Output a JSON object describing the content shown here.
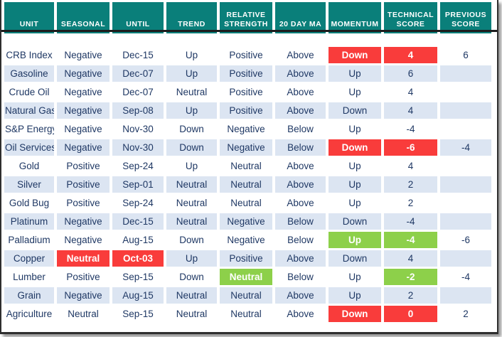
{
  "colors": {
    "header_bg": "#0a7f7a",
    "header_text": "#ffffff",
    "stripe_bg": "#dce5f2",
    "cell_text": "#1f3864",
    "highlight_red": "#f93c3b",
    "highlight_green": "#8dd04a",
    "frame_border": "#2e2e2e"
  },
  "chart_data": {
    "type": "table",
    "columns": [
      "UNIT",
      "SEASONAL",
      "UNTIL",
      "TREND",
      "RELATIVE STRENGTH",
      "20 DAY MA",
      "MOMENTUM",
      "TECHNICAL SCORE",
      "PREVIOUS SCORE"
    ],
    "rows": [
      [
        {
          "t": "CRB Index"
        },
        {
          "t": "Negative"
        },
        {
          "t": "Dec-15"
        },
        {
          "t": "Up"
        },
        {
          "t": "Positive"
        },
        {
          "t": "Above"
        },
        {
          "t": "Down",
          "hl": "red"
        },
        {
          "t": "4",
          "hl": "red"
        },
        {
          "t": "6"
        }
      ],
      [
        {
          "t": "Gasoline"
        },
        {
          "t": "Negative"
        },
        {
          "t": "Dec-07"
        },
        {
          "t": "Up"
        },
        {
          "t": "Positive"
        },
        {
          "t": "Above"
        },
        {
          "t": "Up"
        },
        {
          "t": "6"
        },
        {
          "t": ""
        }
      ],
      [
        {
          "t": "Crude Oil"
        },
        {
          "t": "Negative"
        },
        {
          "t": "Dec-07"
        },
        {
          "t": "Neutral"
        },
        {
          "t": "Positive"
        },
        {
          "t": "Above"
        },
        {
          "t": "Up"
        },
        {
          "t": "4"
        },
        {
          "t": ""
        }
      ],
      [
        {
          "t": "Natural Gas"
        },
        {
          "t": "Negative"
        },
        {
          "t": "Sep-08"
        },
        {
          "t": "Up"
        },
        {
          "t": "Positive"
        },
        {
          "t": "Above"
        },
        {
          "t": "Down"
        },
        {
          "t": "4"
        },
        {
          "t": ""
        }
      ],
      [
        {
          "t": "S&P Energy"
        },
        {
          "t": "Negative"
        },
        {
          "t": "Nov-30"
        },
        {
          "t": "Down"
        },
        {
          "t": "Negative"
        },
        {
          "t": "Below"
        },
        {
          "t": "Up"
        },
        {
          "t": "-4"
        },
        {
          "t": ""
        }
      ],
      [
        {
          "t": "Oil Services"
        },
        {
          "t": "Negative"
        },
        {
          "t": "Nov-30"
        },
        {
          "t": "Down"
        },
        {
          "t": "Negative"
        },
        {
          "t": "Below"
        },
        {
          "t": "Down",
          "hl": "red"
        },
        {
          "t": "-6",
          "hl": "red"
        },
        {
          "t": "-4"
        }
      ],
      [
        {
          "t": "Gold"
        },
        {
          "t": "Positive"
        },
        {
          "t": "Sep-24"
        },
        {
          "t": "Up"
        },
        {
          "t": "Neutral"
        },
        {
          "t": "Above"
        },
        {
          "t": "Up"
        },
        {
          "t": "4"
        },
        {
          "t": ""
        }
      ],
      [
        {
          "t": "Silver"
        },
        {
          "t": "Positive"
        },
        {
          "t": "Sep-01"
        },
        {
          "t": "Neutral"
        },
        {
          "t": "Neutral"
        },
        {
          "t": "Above"
        },
        {
          "t": "Up"
        },
        {
          "t": "2"
        },
        {
          "t": ""
        }
      ],
      [
        {
          "t": "Gold Bug"
        },
        {
          "t": "Positive"
        },
        {
          "t": "Sep-24"
        },
        {
          "t": "Neutral"
        },
        {
          "t": "Neutral"
        },
        {
          "t": "Above"
        },
        {
          "t": "Up"
        },
        {
          "t": "2"
        },
        {
          "t": ""
        }
      ],
      [
        {
          "t": "Platinum"
        },
        {
          "t": "Negative"
        },
        {
          "t": "Dec-15"
        },
        {
          "t": "Neutral"
        },
        {
          "t": "Negative"
        },
        {
          "t": "Below"
        },
        {
          "t": "Down"
        },
        {
          "t": "-4"
        },
        {
          "t": ""
        }
      ],
      [
        {
          "t": "Palladium"
        },
        {
          "t": "Negative"
        },
        {
          "t": "Aug-15"
        },
        {
          "t": "Down"
        },
        {
          "t": "Negative"
        },
        {
          "t": "Below"
        },
        {
          "t": "Up",
          "hl": "green"
        },
        {
          "t": "-4",
          "hl": "green"
        },
        {
          "t": "-6"
        }
      ],
      [
        {
          "t": "Copper"
        },
        {
          "t": "Neutral",
          "hl": "red"
        },
        {
          "t": "Oct-03",
          "hl": "red"
        },
        {
          "t": "Up"
        },
        {
          "t": "Positive"
        },
        {
          "t": "Above"
        },
        {
          "t": "Down"
        },
        {
          "t": "4"
        },
        {
          "t": ""
        }
      ],
      [
        {
          "t": "Lumber"
        },
        {
          "t": "Positive"
        },
        {
          "t": "Sep-15"
        },
        {
          "t": "Down"
        },
        {
          "t": "Neutral",
          "hl": "green"
        },
        {
          "t": "Below"
        },
        {
          "t": "Up"
        },
        {
          "t": "-2",
          "hl": "green"
        },
        {
          "t": "-4"
        }
      ],
      [
        {
          "t": "Grain"
        },
        {
          "t": "Negative"
        },
        {
          "t": "Aug-15"
        },
        {
          "t": "Neutral"
        },
        {
          "t": "Neutral"
        },
        {
          "t": "Above"
        },
        {
          "t": "Up"
        },
        {
          "t": "2"
        },
        {
          "t": ""
        }
      ],
      [
        {
          "t": "Agriculture"
        },
        {
          "t": "Neutral"
        },
        {
          "t": "Sep-15"
        },
        {
          "t": "Neutral"
        },
        {
          "t": "Neutral"
        },
        {
          "t": "Above"
        },
        {
          "t": "Down",
          "hl": "red"
        },
        {
          "t": "0",
          "hl": "red"
        },
        {
          "t": "2"
        }
      ]
    ]
  }
}
